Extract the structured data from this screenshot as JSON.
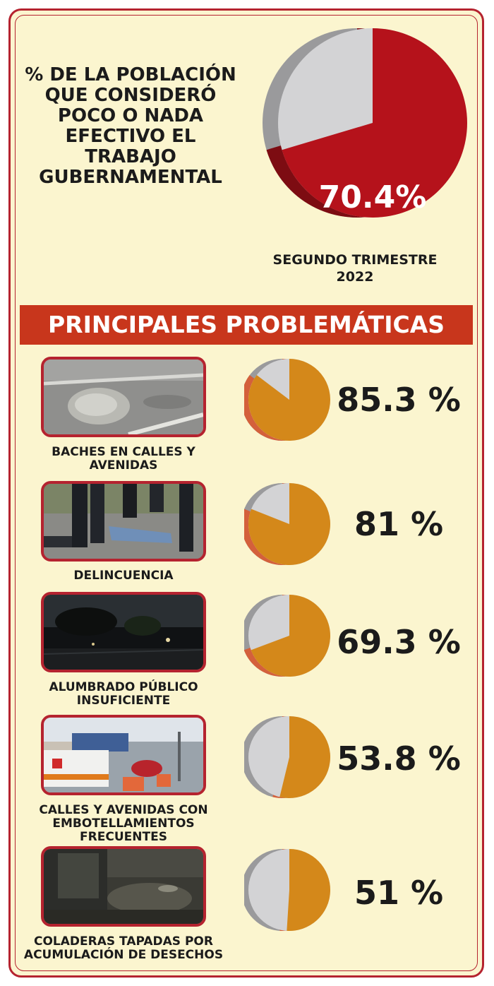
{
  "colors": {
    "border": "#b5232f",
    "background": "#fbf5cf",
    "banner": "#c8361c",
    "hero_slice": "#b5121b",
    "hero_slice_side": "#7d0c12",
    "small_slice": "#d4881a",
    "small_slice_side": "#d4603b",
    "pie_rest": "#d3d3d5",
    "pie_rest_side": "#9a9a9c"
  },
  "headline": {
    "title": "% DE LA POBLACIÓN QUE CONSIDERÓ POCO O NADA EFECTIVO EL TRABAJO GUBERNAMENTAL",
    "value_label": "70.4%",
    "caption": "SEGUNDO TRIMESTRE 2022"
  },
  "banner": {
    "title": "PRINCIPALES PROBLEMÁTICAS"
  },
  "items": [
    {
      "label": "BACHES EN CALLES Y AVENIDAS",
      "value_label": "85.3 %",
      "photo": "pothole-photo"
    },
    {
      "label": "DELINCUENCIA",
      "value_label": "81 %",
      "photo": "crime-scene-photo"
    },
    {
      "label": "ALUMBRADO PÚBLICO INSUFICIENTE",
      "value_label": "69.3 %",
      "photo": "dark-street-photo"
    },
    {
      "label": "CALLES Y AVENIDAS CON EMBOTELLAMIENTOS FRECUENTES",
      "value_label": "53.8 %",
      "photo": "traffic-jam-photo"
    },
    {
      "label": "COLADERAS TAPADAS POR ACUMULACIÓN DE DESECHOS",
      "value_label": "51 %",
      "photo": "flooded-street-photo"
    }
  ],
  "chart_data": [
    {
      "type": "pie",
      "title": "% DE LA POBLACIÓN QUE CONSIDERÓ POCO O NADA EFECTIVO EL TRABAJO GUBERNAMENTAL",
      "subtitle": "SEGUNDO TRIMESTRE 2022",
      "values": [
        70.4,
        29.6
      ]
    },
    {
      "type": "pie",
      "title": "PRINCIPALES PROBLEMÁTICAS",
      "categories": [
        "BACHES EN CALLES Y AVENIDAS",
        "DELINCUENCIA",
        "ALUMBRADO PÚBLICO INSUFICIENTE",
        "CALLES Y AVENIDAS CON EMBOTELLAMIENTOS FRECUENTES",
        "COLADERAS TAPADAS POR ACUMULACIÓN DE DESECHOS"
      ],
      "values": [
        85.3,
        81,
        69.3,
        53.8,
        51
      ]
    }
  ]
}
